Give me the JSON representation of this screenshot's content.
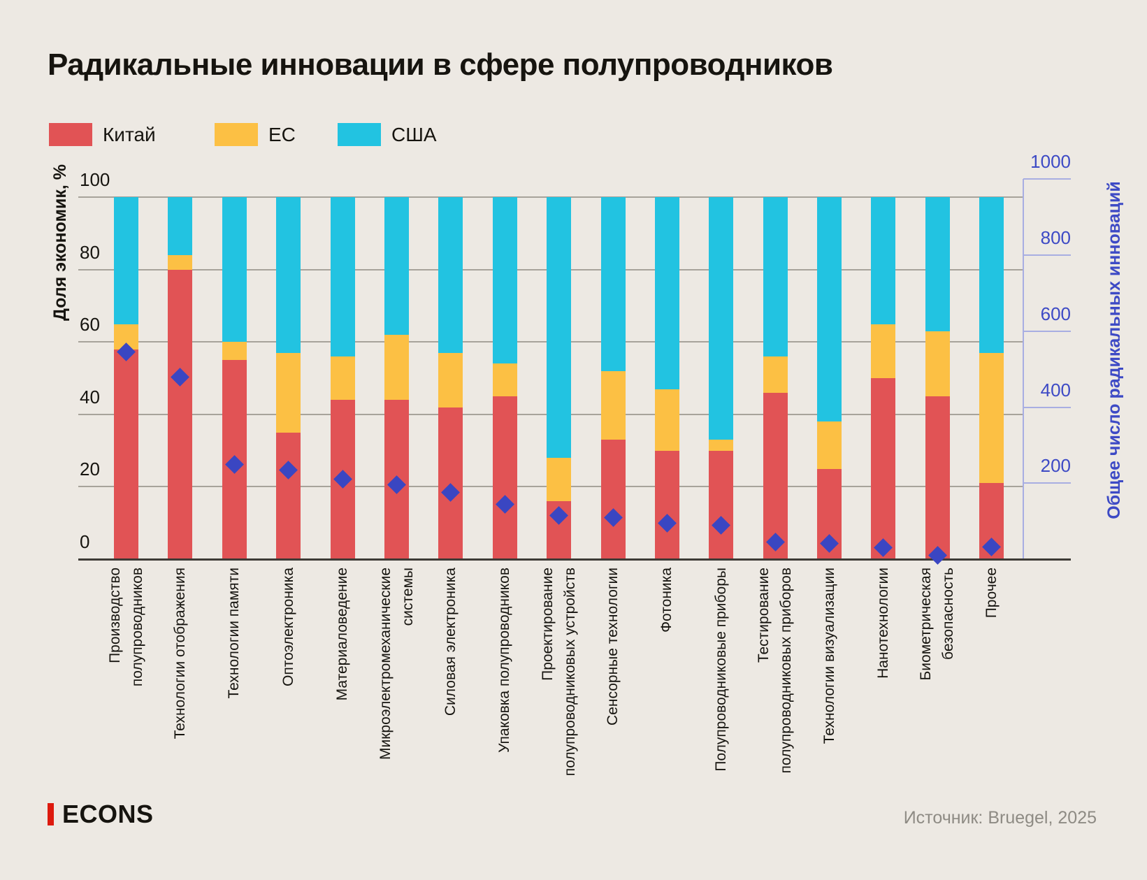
{
  "title": "Радикальные инновации в сфере полупроводников",
  "legend": {
    "items": [
      {
        "label": "Китай",
        "color": "#E15355"
      },
      {
        "label": "ЕС",
        "color": "#FCC044"
      },
      {
        "label": "США",
        "color": "#22C3E1"
      }
    ]
  },
  "left_axis": {
    "title": "Доля экономик, %",
    "ticks": [
      0,
      20,
      40,
      60,
      80,
      100
    ]
  },
  "right_axis": {
    "title": "Общее число радикальных инноваций",
    "ticks": [
      200,
      400,
      600,
      800,
      1000
    ],
    "text_color": "#3D4AC5",
    "line_color": "#A8AEE2"
  },
  "footer": {
    "logo_text": "ECONS",
    "logo_bar_color": "#DD1A0E",
    "source": "Источник: Bruegel, 2025"
  },
  "chart_data": {
    "type": "bar",
    "stacked": true,
    "title": "Радикальные инновации в сфере полупроводников",
    "ylabel_left": "Доля экономик, %",
    "ylim_left": [
      0,
      100
    ],
    "ylabel_right": "Общее число радикальных инноваций",
    "ylim_right": [
      0,
      1000
    ],
    "grid": true,
    "legend_position": "top-left",
    "categories": [
      "Производство\nполупроводников",
      "Технологии отображения",
      "Технологии памяти",
      "Оптоэлектроника",
      "Материаловедение",
      "Микроэлектромеханические\nсистемы",
      "Силовая электроника",
      "Упаковка полупроводников",
      "Проектирование\nполупроводниковых устройств",
      "Сенсорные технологии",
      "Фотоника",
      "Полупроводниковые приборы",
      "Тестирование\nполупроводниковых приборов",
      "Технологии визуализации",
      "Нанотехнологии",
      "Биометрическая\nбезопасность",
      "Прочее"
    ],
    "series": [
      {
        "name": "Китай",
        "color": "#E15355",
        "values": [
          58,
          80,
          55,
          35,
          44,
          44,
          42,
          45,
          16,
          33,
          30,
          30,
          46,
          25,
          50,
          45,
          21
        ]
      },
      {
        "name": "ЕС",
        "color": "#FCC044",
        "values": [
          7,
          4,
          5,
          22,
          12,
          18,
          15,
          9,
          12,
          19,
          17,
          3,
          10,
          13,
          15,
          18,
          36
        ]
      },
      {
        "name": "США",
        "color": "#22C3E1",
        "values": [
          35,
          16,
          40,
          43,
          44,
          38,
          43,
          46,
          72,
          48,
          53,
          67,
          44,
          62,
          35,
          37,
          43
        ]
      }
    ],
    "totals": {
      "name": "Общее число радикальных инноваций",
      "marker": "diamond",
      "color": "#3A46C2",
      "axis": "right",
      "values": [
        545,
        480,
        250,
        235,
        210,
        195,
        175,
        145,
        115,
        110,
        95,
        90,
        45,
        42,
        30,
        10,
        32
      ]
    }
  }
}
